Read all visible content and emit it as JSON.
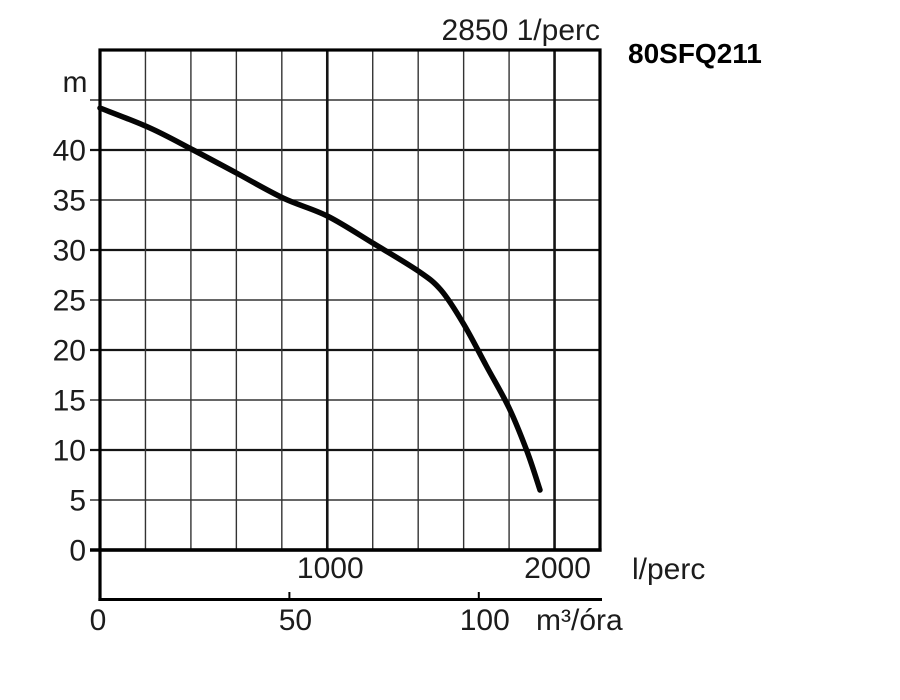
{
  "header": {
    "speed_label": "2850 1/perc",
    "model": "80SFQ211"
  },
  "axes": {
    "y": {
      "unit": "m",
      "min": 0,
      "max": 50,
      "grid_step": 5,
      "ticks": [
        0,
        5,
        10,
        15,
        20,
        25,
        30,
        35,
        40
      ]
    },
    "x_lperc": {
      "unit": "l/perc",
      "min": 0,
      "max": 2200,
      "grid_step": 200,
      "ticks": [
        1000,
        2000
      ]
    },
    "x_m3h": {
      "unit": "m³/óra",
      "ticks": [
        0,
        50,
        100
      ],
      "lperc_per_unit": 16.6667
    }
  },
  "chart_data": {
    "type": "line",
    "title": "80SFQ211 — 2850 1/perc",
    "xlabel": "l/perc",
    "xlabel_secondary": "m³/óra",
    "ylabel": "m",
    "xlim": [
      0,
      2200
    ],
    "ylim": [
      0,
      50
    ],
    "grid": true,
    "legend": false,
    "series": [
      {
        "name": "H-Q performance curve",
        "x": [
          0,
          220,
          410,
          600,
          805,
          1000,
          1200,
          1400,
          1500,
          1600,
          1700,
          1800,
          1880,
          1936
        ],
        "y": [
          44.2,
          42.2,
          40.0,
          37.7,
          35.2,
          33.4,
          30.7,
          27.9,
          26.0,
          22.6,
          18.4,
          14.2,
          9.8,
          6.0
        ]
      }
    ]
  },
  "colors": {
    "curve": "#050505",
    "grid_minor": "#333333",
    "grid_major": "#141414",
    "border": "#000000",
    "text": "#1c1c1c",
    "background": "#ffffff"
  }
}
